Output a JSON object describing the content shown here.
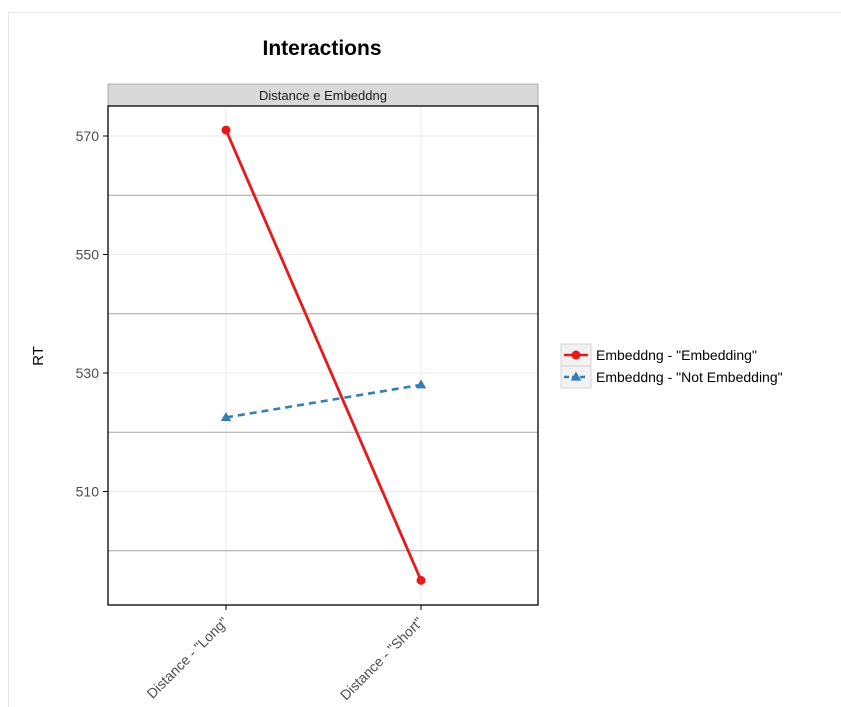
{
  "chart_data": {
    "type": "line",
    "title": "Interactions",
    "facet_label": "Distance e Embeddng",
    "xlabel": "",
    "ylabel": "RT",
    "categories": [
      "Distance - \"Long\"",
      "Distance - \"Short\""
    ],
    "ylim": [
      491,
      575
    ],
    "y_ticks": [
      510,
      530,
      550,
      570
    ],
    "y_minor_gridlines": [
      500,
      520,
      540,
      560
    ],
    "grid": true,
    "legend_position": "right",
    "series": [
      {
        "name": "Embeddng - \"Embedding\"",
        "values": [
          571,
          495
        ],
        "color": "#e41a1c",
        "marker": "circle",
        "line": "solid"
      },
      {
        "name": "Embeddng - \"Not Embedding\"",
        "values": [
          522.5,
          528
        ],
        "color": "#377eb8",
        "marker": "triangle",
        "line": "dashed"
      }
    ]
  }
}
